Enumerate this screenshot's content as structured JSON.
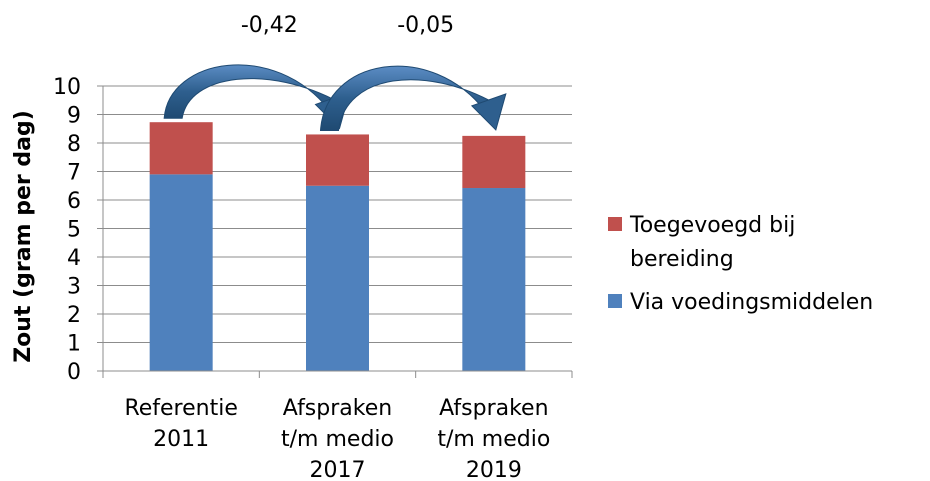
{
  "chart_data": {
    "type": "bar",
    "stacked": true,
    "categories": [
      [
        "Referentie",
        "2011"
      ],
      [
        "Afspraken",
        "t/m medio",
        "2017"
      ],
      [
        "Afspraken",
        "t/m medio",
        "2019"
      ]
    ],
    "series": [
      {
        "name": "Via voedingsmiddelen",
        "color": "#4f81bd",
        "values": [
          6.9,
          6.5,
          6.42
        ]
      },
      {
        "name": "Toegevoegd bij bereiding",
        "color": "#c0504d",
        "values": [
          1.83,
          1.8,
          1.83
        ]
      }
    ],
    "ylabel": "Zout (gram per dag)",
    "ylim": [
      0,
      10
    ],
    "yticks": [
      0,
      1,
      2,
      3,
      4,
      5,
      6,
      7,
      8,
      9,
      10
    ],
    "grid": true,
    "legend": {
      "placement": "right",
      "entries": [
        {
          "lines": [
            "Toegevoegd bij",
            "bereiding"
          ],
          "color": "#c0504d"
        },
        {
          "lines": [
            "Via voedingsmiddelen"
          ],
          "color": "#4f81bd"
        }
      ]
    },
    "annotations": [
      {
        "text": "-0,42",
        "from": 0,
        "to": 1
      },
      {
        "text": "-0,05",
        "from": 1,
        "to": 2
      }
    ],
    "arrow_color": "#2e5f8e"
  }
}
